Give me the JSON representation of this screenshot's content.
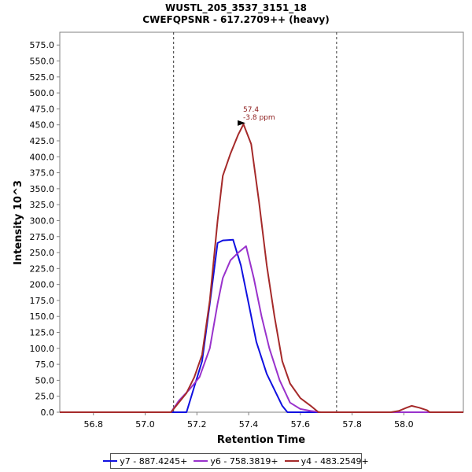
{
  "chart_data": {
    "type": "line",
    "title": "WUSTL_205_3537_3151_18",
    "subtitle": "CWEFQPSNR - 617.2709++ (heavy)",
    "xlabel": "Retention Time",
    "ylabel": "Intensity 10^3",
    "xlim": [
      56.67,
      58.23
    ],
    "ylim": [
      0,
      595
    ],
    "xticks": [
      "56.8",
      "57.0",
      "57.2",
      "57.4",
      "57.6",
      "57.8",
      "58.0"
    ],
    "yticks": [
      "0.0",
      "25.0",
      "50.0",
      "75.0",
      "100.0",
      "125.0",
      "150.0",
      "175.0",
      "200.0",
      "225.0",
      "250.0",
      "275.0",
      "300.0",
      "325.0",
      "350.0",
      "375.0",
      "400.0",
      "425.0",
      "450.0",
      "475.0",
      "500.0",
      "525.0",
      "550.0",
      "575.0"
    ],
    "boundaries": [
      57.11,
      57.74
    ],
    "annotation": {
      "x": 57.4,
      "y": 451,
      "line1": "57.4",
      "line2": "-3.8 ppm",
      "color": "#8b1a1a"
    },
    "series": [
      {
        "name": "y7 - 887.4245+",
        "color": "#1010e0",
        "points": [
          [
            56.67,
            0
          ],
          [
            57.16,
            0
          ],
          [
            57.19,
            40
          ],
          [
            57.22,
            80
          ],
          [
            57.25,
            170
          ],
          [
            57.28,
            265
          ],
          [
            57.3,
            269
          ],
          [
            57.34,
            270
          ],
          [
            57.37,
            230
          ],
          [
            57.4,
            170
          ],
          [
            57.43,
            110
          ],
          [
            57.47,
            60
          ],
          [
            57.53,
            10
          ],
          [
            57.55,
            0
          ],
          [
            58.23,
            0
          ]
        ]
      },
      {
        "name": "y6 - 758.3819+",
        "color": "#9932cc",
        "points": [
          [
            56.67,
            0
          ],
          [
            57.1,
            0
          ],
          [
            57.13,
            18
          ],
          [
            57.17,
            35
          ],
          [
            57.21,
            55
          ],
          [
            57.25,
            100
          ],
          [
            57.28,
            170
          ],
          [
            57.3,
            210
          ],
          [
            57.33,
            238
          ],
          [
            57.36,
            250
          ],
          [
            57.39,
            260
          ],
          [
            57.42,
            210
          ],
          [
            57.45,
            150
          ],
          [
            57.48,
            100
          ],
          [
            57.52,
            50
          ],
          [
            57.56,
            15
          ],
          [
            57.6,
            5
          ],
          [
            57.64,
            2
          ],
          [
            57.68,
            0
          ],
          [
            58.23,
            0
          ]
        ]
      },
      {
        "name": "y4 - 483.2549+",
        "color": "#a52a2a",
        "points": [
          [
            56.67,
            0
          ],
          [
            57.1,
            0
          ],
          [
            57.13,
            15
          ],
          [
            57.16,
            30
          ],
          [
            57.19,
            55
          ],
          [
            57.22,
            90
          ],
          [
            57.25,
            175
          ],
          [
            57.28,
            300
          ],
          [
            57.3,
            370
          ],
          [
            57.33,
            405
          ],
          [
            57.36,
            435
          ],
          [
            57.38,
            451
          ],
          [
            57.41,
            420
          ],
          [
            57.44,
            330
          ],
          [
            57.47,
            230
          ],
          [
            57.5,
            150
          ],
          [
            57.53,
            80
          ],
          [
            57.56,
            45
          ],
          [
            57.6,
            22
          ],
          [
            57.64,
            10
          ],
          [
            57.67,
            0
          ],
          [
            57.95,
            0
          ],
          [
            57.98,
            2
          ],
          [
            58.01,
            7
          ],
          [
            58.03,
            10
          ],
          [
            58.06,
            7
          ],
          [
            58.09,
            3
          ],
          [
            58.1,
            0
          ],
          [
            58.23,
            0
          ]
        ]
      }
    ]
  }
}
